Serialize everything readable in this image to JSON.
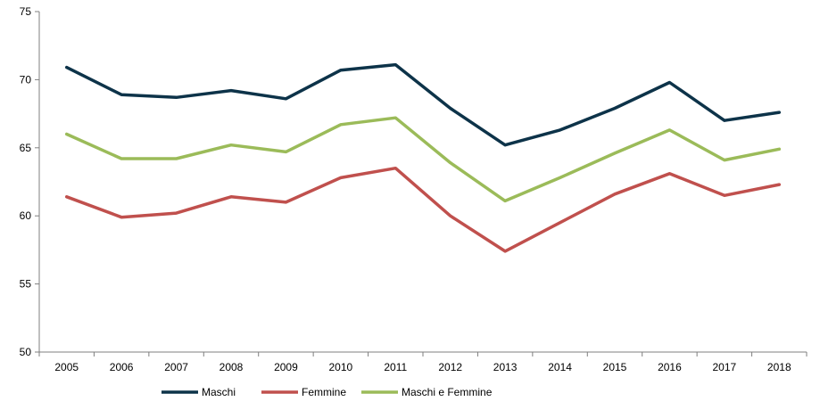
{
  "chart_data": {
    "type": "line",
    "title": "",
    "xlabel": "",
    "ylabel": "",
    "categories": [
      "2005",
      "2006",
      "2007",
      "2008",
      "2009",
      "2010",
      "2011",
      "2012",
      "2013",
      "2014",
      "2015",
      "2016",
      "2017",
      "2018"
    ],
    "ylim": [
      50,
      75
    ],
    "yticks": [
      "50",
      "55",
      "60",
      "65",
      "70",
      "75"
    ],
    "grid": false,
    "legend_position": "bottom",
    "series": [
      {
        "name": "Maschi",
        "color": "#0d3349",
        "values": [
          70.9,
          68.9,
          68.7,
          69.2,
          68.6,
          70.7,
          71.1,
          67.9,
          65.2,
          66.3,
          67.9,
          69.8,
          67.0,
          67.6
        ]
      },
      {
        "name": "Femmine",
        "color": "#c0504d",
        "values": [
          61.4,
          59.9,
          60.2,
          61.4,
          61.0,
          62.8,
          63.5,
          60.0,
          57.4,
          59.5,
          61.6,
          63.1,
          61.5,
          62.3
        ]
      },
      {
        "name": "Maschi e Femmine",
        "color": "#9bbb59",
        "values": [
          66.0,
          64.2,
          64.2,
          65.2,
          64.7,
          66.7,
          67.2,
          63.9,
          61.1,
          62.8,
          64.6,
          66.3,
          64.1,
          64.9
        ]
      }
    ]
  }
}
